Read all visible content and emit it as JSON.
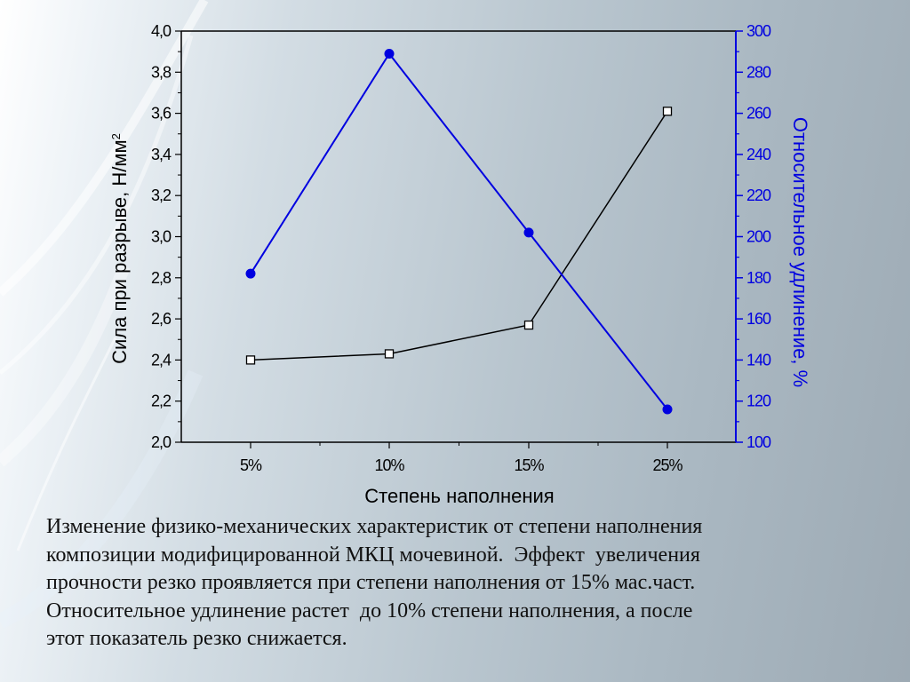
{
  "chart_data": {
    "type": "line",
    "categories": [
      "5%",
      "10%",
      "15%",
      "25%"
    ],
    "xlabel": "Степень наполнения",
    "y_left": {
      "label": "Сила при разрыве, Н/мм",
      "label_sup": "2",
      "ylim": [
        2.0,
        4.0
      ],
      "ticks": [
        "2,0",
        "2,2",
        "2,4",
        "2,6",
        "2,8",
        "3,0",
        "3,2",
        "3,4",
        "3,6",
        "3,8",
        "4,0"
      ],
      "color": "#000000"
    },
    "y_right": {
      "label": "Относительное удлинение, %",
      "ylim": [
        100,
        300
      ],
      "ticks": [
        "100",
        "120",
        "140",
        "160",
        "180",
        "200",
        "220",
        "240",
        "260",
        "280",
        "300"
      ],
      "color": "#0000e0"
    },
    "series": [
      {
        "axis": "left",
        "marker": "open-square",
        "color": "#000000",
        "values": [
          2.4,
          2.43,
          2.57,
          3.61
        ]
      },
      {
        "axis": "right",
        "marker": "filled-circle",
        "color": "#0000e0",
        "values": [
          182,
          289,
          202,
          116
        ]
      }
    ],
    "grid": false,
    "legend": "none"
  },
  "caption": {
    "lines": [
      "Изменение физико-механических характеристик от степени наполнения",
      "композиции модифицированной МКЦ мочевиной.  Эффект  увеличения",
      "прочности резко проявляется при степени наполнения от 15% мас.част.",
      "Относительное удлинение растет  до 10% степени наполнения, а после",
      "этот показатель резко снижается."
    ]
  }
}
